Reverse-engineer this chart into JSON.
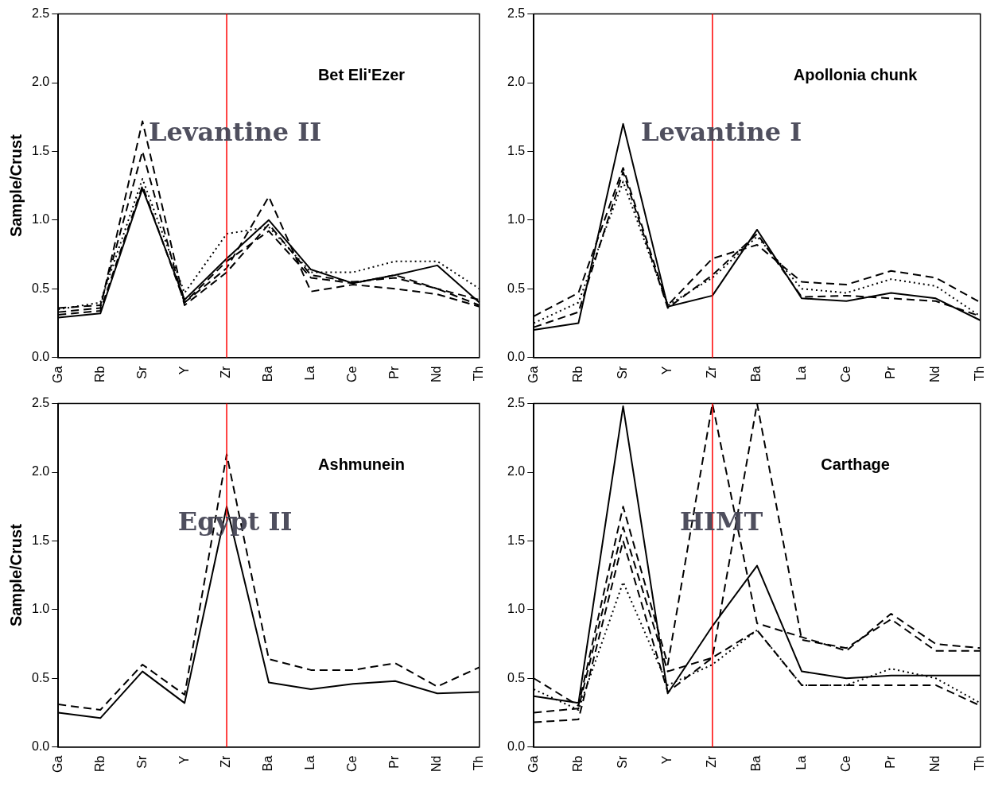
{
  "chart_data": [
    {
      "type": "line",
      "title": "Bet Eli'Ezer",
      "ylabel": "Sample/Crust",
      "annotations": [
        "Levantine II"
      ],
      "categories": [
        "Ga",
        "Rb",
        "Sr",
        "Y",
        "Zr",
        "Ba",
        "La",
        "Ce",
        "Pr",
        "Nd",
        "Th"
      ],
      "ylim": [
        0,
        2.5
      ],
      "yticks": [
        {
          "value": 0,
          "label": "0.0"
        },
        {
          "value": 0.5,
          "label": "0.5"
        },
        {
          "value": 1,
          "label": "1.0"
        },
        {
          "value": 1.5,
          "label": "1.5"
        },
        {
          "value": 2,
          "label": "2.0"
        },
        {
          "value": 2.5,
          "label": "2.5"
        }
      ],
      "grid": false,
      "legend": false,
      "marker": "none",
      "ref_lines": [
        {
          "axis": "x",
          "value": "Zr",
          "color": "#ff0000"
        }
      ],
      "series": [
        {
          "color": "#000000",
          "line_style": "solid",
          "values": [
            0.29,
            0.32,
            1.23,
            0.42,
            0.72,
            1.0,
            0.64,
            0.54,
            0.6,
            0.67,
            0.4
          ]
        },
        {
          "color": "#000000",
          "line_style": "dashed",
          "values": [
            0.33,
            0.36,
            1.72,
            0.4,
            0.65,
            1.17,
            0.48,
            0.53,
            0.5,
            0.46,
            0.37
          ]
        },
        {
          "color": "#000000",
          "line_style": "dashed",
          "values": [
            0.36,
            0.38,
            1.5,
            0.38,
            0.62,
            0.97,
            0.6,
            0.55,
            0.58,
            0.5,
            0.38
          ]
        },
        {
          "color": "#000000",
          "line_style": "dotted",
          "values": [
            0.35,
            0.4,
            1.3,
            0.47,
            0.9,
            0.95,
            0.62,
            0.62,
            0.7,
            0.7,
            0.5
          ]
        },
        {
          "color": "#000000",
          "line_style": "dashed",
          "values": [
            0.31,
            0.34,
            1.25,
            0.4,
            0.7,
            0.92,
            0.58,
            0.54,
            0.6,
            0.5,
            0.42
          ]
        }
      ]
    },
    {
      "type": "line",
      "title": "Apollonia chunk",
      "annotations": [
        "Levantine I"
      ],
      "categories": [
        "Ga",
        "Rb",
        "Sr",
        "Y",
        "Zr",
        "Ba",
        "La",
        "Ce",
        "Pr",
        "Nd",
        "Th"
      ],
      "ylim": [
        0,
        2.5
      ],
      "yticks": [
        {
          "value": 0,
          "label": "0.0"
        },
        {
          "value": 0.5,
          "label": "0.5"
        },
        {
          "value": 1,
          "label": "1.0"
        },
        {
          "value": 1.5,
          "label": "1.5"
        },
        {
          "value": 2,
          "label": "2.0"
        },
        {
          "value": 2.5,
          "label": "2.5"
        }
      ],
      "grid": false,
      "legend": false,
      "marker": "none",
      "ref_lines": [
        {
          "axis": "x",
          "value": "Zr",
          "color": "#ff0000"
        }
      ],
      "series": [
        {
          "color": "#000000",
          "line_style": "solid",
          "values": [
            0.2,
            0.25,
            1.7,
            0.37,
            0.45,
            0.93,
            0.43,
            0.41,
            0.47,
            0.43,
            0.27
          ]
        },
        {
          "color": "#000000",
          "line_style": "dashed",
          "values": [
            0.3,
            0.47,
            1.38,
            0.38,
            0.72,
            0.82,
            0.55,
            0.53,
            0.63,
            0.58,
            0.4
          ]
        },
        {
          "color": "#000000",
          "line_style": "dotted",
          "values": [
            0.25,
            0.4,
            1.28,
            0.38,
            0.58,
            0.88,
            0.5,
            0.47,
            0.57,
            0.52,
            0.3
          ]
        },
        {
          "color": "#000000",
          "line_style": "dashed",
          "values": [
            0.22,
            0.33,
            1.35,
            0.36,
            0.6,
            0.9,
            0.44,
            0.45,
            0.43,
            0.41,
            0.3
          ]
        }
      ]
    },
    {
      "type": "line",
      "title": "Ashmunein",
      "ylabel": "Sample/Crust",
      "annotations": [
        "Egypt II"
      ],
      "categories": [
        "Ga",
        "Rb",
        "Sr",
        "Y",
        "Zr",
        "Ba",
        "La",
        "Ce",
        "Pr",
        "Nd",
        "Th"
      ],
      "ylim": [
        0,
        2.5
      ],
      "yticks": [
        {
          "value": 0,
          "label": "0.0"
        },
        {
          "value": 0.5,
          "label": "0.5"
        },
        {
          "value": 1,
          "label": "1.0"
        },
        {
          "value": 1.5,
          "label": "1.5"
        },
        {
          "value": 2,
          "label": "2.0"
        },
        {
          "value": 2.5,
          "label": "2.5"
        }
      ],
      "grid": false,
      "legend": false,
      "marker": "none",
      "ref_lines": [
        {
          "axis": "x",
          "value": "Zr",
          "color": "#ff0000"
        }
      ],
      "series": [
        {
          "color": "#000000",
          "line_style": "solid",
          "values": [
            0.25,
            0.21,
            0.55,
            0.32,
            1.75,
            0.47,
            0.42,
            0.46,
            0.48,
            0.39,
            0.4
          ]
        },
        {
          "color": "#000000",
          "line_style": "dashed",
          "values": [
            0.31,
            0.27,
            0.6,
            0.38,
            2.13,
            0.64,
            0.56,
            0.56,
            0.61,
            0.44,
            0.58
          ]
        }
      ]
    },
    {
      "type": "line",
      "title": "Carthage",
      "annotations": [
        "HIMT"
      ],
      "categories": [
        "Ga",
        "Rb",
        "Sr",
        "Y",
        "Zr",
        "Ba",
        "La",
        "Ce",
        "Pr",
        "Nd",
        "Th"
      ],
      "ylim": [
        0,
        2.5
      ],
      "yticks": [
        {
          "value": 0,
          "label": "0.0"
        },
        {
          "value": 0.5,
          "label": "0.5"
        },
        {
          "value": 1,
          "label": "1.0"
        },
        {
          "value": 1.5,
          "label": "1.5"
        },
        {
          "value": 2,
          "label": "2.0"
        },
        {
          "value": 2.5,
          "label": "2.5"
        }
      ],
      "grid": false,
      "legend": false,
      "marker": "none",
      "ref_lines": [
        {
          "axis": "x",
          "value": "Zr",
          "color": "#ff0000"
        }
      ],
      "series": [
        {
          "color": "#000000",
          "line_style": "solid",
          "values": [
            0.37,
            0.32,
            2.48,
            0.39,
            0.88,
            1.32,
            0.55,
            0.5,
            0.52,
            0.52,
            0.52
          ]
        },
        {
          "color": "#000000",
          "line_style": "dashed",
          "values": [
            0.5,
            0.3,
            1.75,
            0.6,
            2.5,
            0.9,
            0.8,
            0.7,
            0.97,
            0.75,
            0.72
          ]
        },
        {
          "color": "#000000",
          "line_style": "dashed",
          "values": [
            0.25,
            0.28,
            1.6,
            0.55,
            0.65,
            2.5,
            0.78,
            0.72,
            0.93,
            0.7,
            0.7
          ]
        },
        {
          "color": "#000000",
          "line_style": "dotted",
          "values": [
            0.42,
            0.27,
            1.2,
            0.45,
            0.6,
            0.85,
            0.45,
            0.45,
            0.57,
            0.5,
            0.32
          ]
        },
        {
          "color": "#000000",
          "line_style": "dashed",
          "values": [
            0.18,
            0.2,
            1.5,
            0.4,
            0.65,
            0.85,
            0.45,
            0.45,
            0.45,
            0.45,
            0.3
          ]
        }
      ]
    }
  ]
}
